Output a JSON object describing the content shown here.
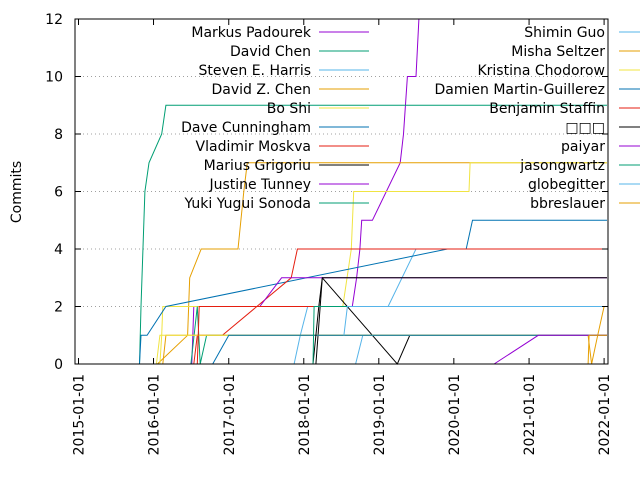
{
  "chart_data": {
    "type": "line",
    "title": "",
    "xlabel": "",
    "ylabel": "Commits",
    "ylim": [
      0,
      12
    ],
    "yticks": [
      0,
      2,
      4,
      6,
      8,
      10,
      12
    ],
    "xlim": [
      "2014-12-15",
      "2022-01-20"
    ],
    "xticks": [
      "2015-01-01",
      "2016-01-01",
      "2017-01-01",
      "2018-01-01",
      "2019-01-01",
      "2020-01-01",
      "2021-01-01",
      "2022-01-01"
    ],
    "grid": "y-dotted",
    "legend_position": "top, two columns",
    "series": [
      {
        "name": "Markus Padourek",
        "color": "#9400d3",
        "points": [
          [
            "2016-07-05",
            0
          ],
          [
            "2016-07-10",
            1
          ],
          [
            "2016-07-15",
            2
          ],
          [
            "2018-08-25",
            2
          ],
          [
            "2018-09-15",
            3
          ],
          [
            "2018-10-01",
            4
          ],
          [
            "2018-10-10",
            5
          ],
          [
            "2018-12-01",
            5
          ],
          [
            "2019-04-15",
            7
          ],
          [
            "2019-05-01",
            8
          ],
          [
            "2019-05-20",
            10
          ],
          [
            "2019-07-01",
            10
          ],
          [
            "2019-07-15",
            12
          ]
        ]
      },
      {
        "name": "David Chen",
        "color": "#009e73",
        "points": [
          [
            "2015-10-25",
            0
          ],
          [
            "2015-11-01",
            2
          ],
          [
            "2015-11-20",
            6
          ],
          [
            "2015-12-10",
            7
          ],
          [
            "2016-02-10",
            8
          ],
          [
            "2016-03-01",
            9
          ],
          [
            "2022-01-15",
            9
          ]
        ]
      },
      {
        "name": "Steven E. Harris",
        "color": "#56b4e9",
        "points": [
          [
            "2017-11-15",
            0
          ],
          [
            "2017-12-15",
            1
          ],
          [
            "2018-01-20",
            2
          ],
          [
            "2019-02-15",
            2
          ],
          [
            "2019-07-01",
            4
          ],
          [
            "2022-01-15",
            4
          ]
        ]
      },
      {
        "name": "David Z. Chen",
        "color": "#e69f00",
        "points": [
          [
            "2016-01-20",
            0
          ],
          [
            "2016-06-15",
            1
          ],
          [
            "2016-06-25",
            3
          ],
          [
            "2016-08-20",
            4
          ],
          [
            "2017-02-15",
            4
          ],
          [
            "2017-03-15",
            6
          ],
          [
            "2017-04-01",
            7
          ],
          [
            "2022-01-15",
            7
          ]
        ]
      },
      {
        "name": "Bo Shi",
        "color": "#f0e442",
        "points": [
          [
            "2016-02-01",
            0
          ],
          [
            "2016-02-10",
            1
          ],
          [
            "2016-02-15",
            2
          ],
          [
            "2018-07-10",
            2
          ],
          [
            "2018-08-20",
            4
          ],
          [
            "2018-09-01",
            6
          ],
          [
            "2019-10-15",
            6
          ],
          [
            "2020-03-15",
            6
          ],
          [
            "2020-03-20",
            7
          ],
          [
            "2022-01-15",
            7
          ]
        ]
      },
      {
        "name": "Dave Cunningham",
        "color": "#0072b2",
        "points": [
          [
            "2015-10-25",
            0
          ],
          [
            "2015-11-01",
            1
          ],
          [
            "2015-12-01",
            1
          ],
          [
            "2016-03-01",
            2
          ],
          [
            "2019-12-01",
            4
          ],
          [
            "2020-03-01",
            4
          ],
          [
            "2020-04-01",
            5
          ],
          [
            "2022-01-15",
            5
          ]
        ]
      },
      {
        "name": "Vladimir Moskva",
        "color": "#e51e10",
        "points": [
          [
            "2016-07-15",
            0
          ],
          [
            "2016-08-01",
            1
          ],
          [
            "2016-12-01",
            1
          ],
          [
            "2017-11-01",
            3
          ],
          [
            "2017-12-01",
            4
          ],
          [
            "2022-01-15",
            4
          ]
        ]
      },
      {
        "name": "Marius Grigoriu",
        "color": "#000000",
        "points": [
          [
            "2018-03-01",
            0
          ],
          [
            "2018-04-01",
            3
          ],
          [
            "2019-04-01",
            0
          ],
          [
            "2019-06-01",
            1
          ],
          [
            "2022-01-15",
            1
          ]
        ]
      },
      {
        "name": "Justine Tunney",
        "color": "#9400d3",
        "points": [
          [
            "2017-06-01",
            2
          ],
          [
            "2017-09-15",
            3
          ],
          [
            "2022-01-15",
            3
          ]
        ]
      },
      {
        "name": "Yuki Yugui Sonoda",
        "color": "#009e73",
        "points": [
          [
            "2016-07-01",
            0
          ],
          [
            "2016-08-01",
            2
          ],
          [
            "2016-08-15",
            0
          ],
          [
            "2016-09-15",
            1
          ],
          [
            "2022-01-15",
            1
          ]
        ]
      },
      {
        "name": "Shimin Guo",
        "color": "#56b4e9",
        "points": [
          [
            "2018-09-10",
            0
          ],
          [
            "2018-10-15",
            1
          ],
          [
            "2022-01-15",
            1
          ]
        ]
      },
      {
        "name": "Misha Seltzer",
        "color": "#e69f00",
        "points": [
          [
            "2016-02-15",
            0
          ],
          [
            "2016-03-01",
            1
          ],
          [
            "2021-10-15",
            1
          ],
          [
            "2021-11-01",
            0
          ],
          [
            "2021-12-01",
            1
          ],
          [
            "2022-01-01",
            2
          ]
        ]
      },
      {
        "name": "Kristina Chodorow",
        "color": "#f0e442",
        "points": [
          [
            "2016-01-15",
            0
          ],
          [
            "2016-02-01",
            1
          ],
          [
            "2022-01-15",
            1
          ]
        ]
      },
      {
        "name": "Damien Martin-Guillerez",
        "color": "#0072b2",
        "points": [
          [
            "2016-10-15",
            0
          ],
          [
            "2017-01-01",
            1
          ],
          [
            "2022-01-15",
            1
          ]
        ]
      },
      {
        "name": "Benjamin Staffin",
        "color": "#e51e10",
        "points": [
          [
            "2016-08-01",
            0
          ],
          [
            "2016-08-10",
            2
          ],
          [
            "2022-01-15",
            2
          ]
        ]
      },
      {
        "name": "□□□",
        "color": "#000000",
        "points": [
          [
            "2018-02-15",
            0
          ],
          [
            "2018-03-15",
            2
          ],
          [
            "2018-04-01",
            3
          ],
          [
            "2022-01-15",
            3
          ]
        ]
      },
      {
        "name": "paiyar",
        "color": "#9400d3",
        "points": [
          [
            "2020-07-15",
            0
          ],
          [
            "2021-02-15",
            1
          ],
          [
            "2022-01-15",
            1
          ]
        ]
      },
      {
        "name": "jasongwartz",
        "color": "#009e73",
        "points": [
          [
            "2018-02-15",
            0
          ],
          [
            "2018-02-20",
            2
          ],
          [
            "2022-01-15",
            2
          ]
        ]
      },
      {
        "name": "globegitter",
        "color": "#56b4e9",
        "points": [
          [
            "2018-07-15",
            1
          ],
          [
            "2018-08-01",
            2
          ],
          [
            "2022-01-15",
            2
          ]
        ]
      },
      {
        "name": "bbreslauer",
        "color": "#e69f00",
        "points": [
          [
            "2021-10-15",
            0
          ],
          [
            "2021-10-20",
            1
          ],
          [
            "2022-01-15",
            1
          ]
        ]
      }
    ]
  }
}
